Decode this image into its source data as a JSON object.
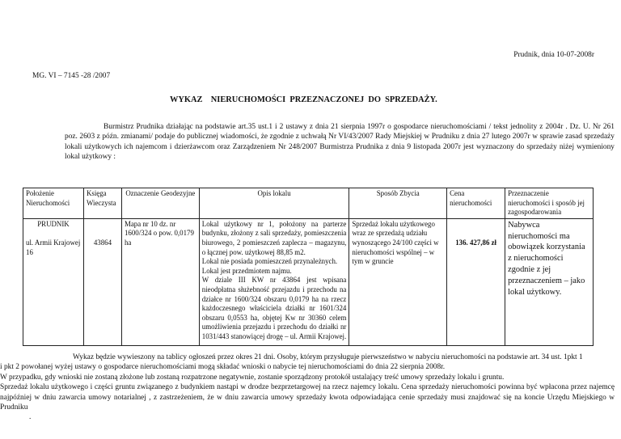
{
  "header": {
    "place_date": "Prudnik, dnia 10-07-2008r",
    "reference": "MG. VI – 7145 -28 /2007",
    "title": "WYKAZ    NIERUCHOMOŚCI  PRZEZNACZONEJ  DO  SPRZEDAŻY."
  },
  "intro": "Burmistrz Prudnika działając na podstawie art.35 ust.1 i 2 ustawy z dnia 21 sierpnia 1997r o gospodarce nieruchomościami / tekst jednolity z 2004r . Dz. U. Nr 261 poz. 2603 z późn. zmianami/ podaje do publicznej wiadomości, że zgodnie z uchwałą Nr VI/43/2007 Rady Miejskiej w Prudniku z dnia 27 lutego 2007r w sprawie zasad sprzedaży lokali użytkowych ich najemcom i dzierżawcom oraz Zarządzeniem Nr 248/2007 Burmistrza Prudnika z dnia 9 listopada 2007r jest wyznaczony do sprzedaży niżej wymieniony lokal użytkowy :",
  "table": {
    "headers": [
      "Położenie Nieruchomości",
      "Księga Wieczysta",
      "Oznaczenie Geodezyjne",
      "Opis lokalu",
      "Sposób Zbycia",
      "Cena nieruchomości",
      "Przeznaczenie nieruchomości i sposób jej zagospodarowania"
    ],
    "row": {
      "location_city": "PRUDNIK",
      "location_street": "ul. Armii Krajowej 16",
      "land_register": "43864",
      "geodetic": "Mapa nr 10 dz. nr 1600/324 o pow. 0,0179 ha",
      "description_1": "Lokal użytkowy nr 1, położony na parterze budynku, złożony z sali sprzedaży, pomieszczenia biurowego, 2 pomieszczeń zaplecza – magazynu, o łącznej pow. użytkowej 88,85 m2.",
      "description_2": "Lokal nie posiada pomieszczeń przynależnych.",
      "description_3": "Lokal jest przedmiotem najmu.",
      "description_4": "W dziale III KW nr 43864 jest wpisana nieodpłatna służebność przejazdu i przechodu na działce nr 1600/324 obszaru 0,0179 ha na rzecz każdoczesnego właściciela działki nr 1601/324 obszaru 0,0553 ha, objętej Kw nr 30360 celem umożliwienia przejazdu i przechodu do działki nr 1031/443 stanowiącej drogę – ul. Armii Krajowej.",
      "disposal": "Sprzedaż lokalu użytkowego wraz ze sprzedażą udziału wynoszącego 24/100 części w nieruchomości wspólnej – w tym w gruncie",
      "price": "136. 427,86 zł",
      "purpose": "Nabywca nieruchomości ma obowiązek korzystania z nieruchomości zgodnie z jej przeznaczeniem – jako lokal użytkowy."
    }
  },
  "footer": {
    "p1": "Wykaz będzie wywieszony na tablicy ogłoszeń przez okres 21 dni. Osoby, którym przysługuje pierwszeństwo w nabyciu nieruchomości na podstawie art. 34 ust. 1pkt 1",
    "p1b": " i pkt 2 powołanej wyżej ustawy o gospodarce nieruchomościami mogą składać wnioski o nabycie tej nieruchomościami do dnia 22 sierpnia 2008r.",
    "p2": "W przypadku, gdy wnioski nie zostaną złożone lub zostaną rozpatrzone negatywnie, zostanie sporządzony protokół ustalający treść umowy sprzedaży lokalu i gruntu.",
    "p3": "Sprzedaż lokalu użytkowego i części gruntu związanego z budynkiem nastąpi w drodze bezprzetargowej na rzecz najemcy lokalu. Cena sprzedaży nieruchomości powinna być wpłacona przez najemcę najpóźniej w dniu zawarcia umowy notarialnej , z zastrzeżeniem, że w dniu zawarcia umowy sprzedaży kwota odpowiadająca cenie sprzedaży musi znajdować się na koncie Urzędu Miejskiego w Prudniku",
    "dot": "."
  }
}
